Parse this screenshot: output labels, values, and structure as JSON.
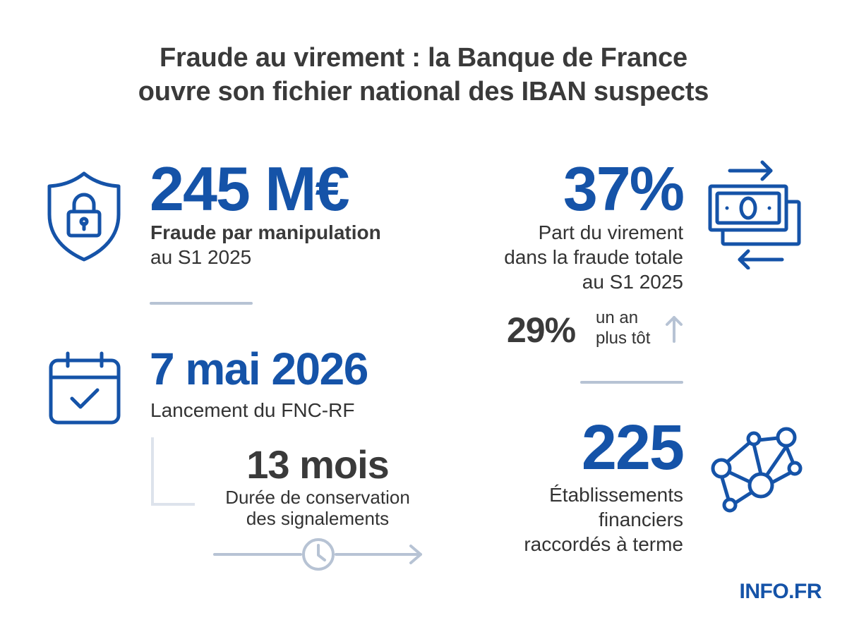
{
  "title": {
    "line1": "Fraude au virement : la Banque de France",
    "line2": "ouvre son fichier national des IBAN suspects"
  },
  "stats": {
    "fraud_amount": {
      "value": "245 M€",
      "label_line1": "Fraude par manipulation",
      "label_line2": "au S1 2025",
      "icon": "shield-lock-icon"
    },
    "transfer_share": {
      "value": "37%",
      "label_line1": "Part du virement",
      "label_line2": "dans la fraude totale",
      "label_line3": "au S1 2025",
      "icon": "money-transfer-icon"
    },
    "previous_share": {
      "value": "29%",
      "label_line1": "un an",
      "label_line2": "plus tôt",
      "icon": "arrow-up-icon"
    },
    "launch": {
      "value": "7 mai 2026",
      "label": "Lancement du FNC-RF",
      "icon": "calendar-check-icon"
    },
    "retention": {
      "value": "13 mois",
      "label_line1": "Durée de conservation",
      "label_line2": "des signalements",
      "icon": "clock-icon"
    },
    "institutions": {
      "value": "225",
      "label_line1": "Établissements",
      "label_line2": "financiers",
      "label_line3": "raccordés à terme",
      "icon": "network-icon"
    }
  },
  "brand": "INFO.FR",
  "colors": {
    "accent": "#1553a8",
    "text": "#333333",
    "divider": "#b7c3d4"
  }
}
